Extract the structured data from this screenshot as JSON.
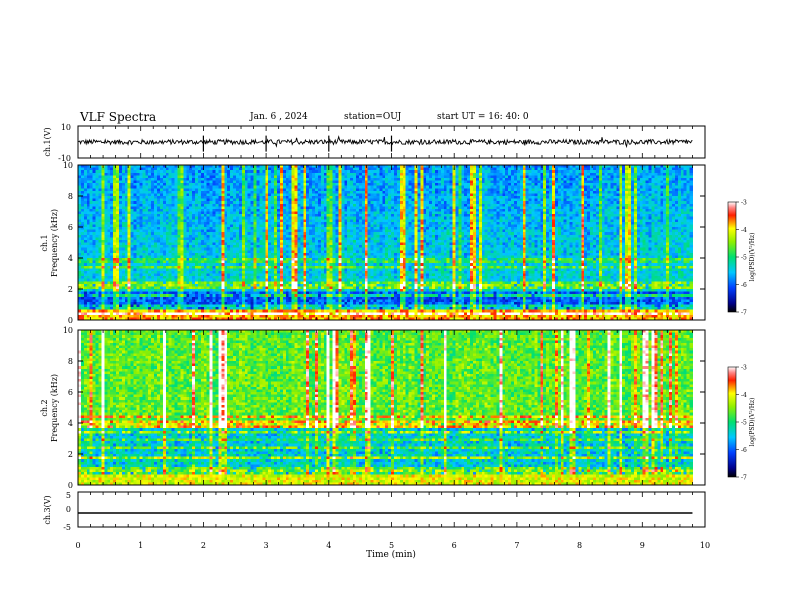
{
  "header": {
    "title": "VLF Spectra",
    "date": "Jan. 6 , 2024",
    "station": "station=OUJ",
    "start": "start UT =  16: 40: 0"
  },
  "chart_data": [
    {
      "type": "line",
      "panel": "ch1-waveform",
      "ylabel": "ch.1(V)",
      "ylim": [
        -10,
        10
      ],
      "yticks": [
        "10",
        "-10"
      ],
      "xlim": [
        0,
        10
      ],
      "baseline": 0,
      "approx_amplitude": 1.5
    },
    {
      "type": "heatmap",
      "panel": "ch1-spectrogram",
      "ylabel": "ch.1 Frequency (kHz)",
      "ylim": [
        0,
        10
      ],
      "yticks": [
        "0",
        "2",
        "4",
        "6",
        "8",
        "10"
      ],
      "xlim": [
        0,
        9.8
      ],
      "colorbar": {
        "label": "log(PSD)(V²/Hz)",
        "range": [
          -7,
          -3
        ],
        "ticks": [
          "-3",
          "-4",
          "-5",
          "-6",
          "-7"
        ]
      }
    },
    {
      "type": "heatmap",
      "panel": "ch2-spectrogram",
      "ylabel": "ch.2 Frequency (kHz)",
      "ylim": [
        0,
        10
      ],
      "yticks": [
        "0",
        "2",
        "4",
        "6",
        "8",
        "10"
      ],
      "xlim": [
        0,
        9.8
      ],
      "colorbar": {
        "label": "log(PSD)(V²/Hz)",
        "range": [
          -7,
          -3
        ],
        "ticks": [
          "-3",
          "-4",
          "-5",
          "-6",
          "-7"
        ]
      }
    },
    {
      "type": "line",
      "panel": "ch3-waveform",
      "ylabel": "ch.3(V)",
      "ylim": [
        -5,
        5
      ],
      "yticks": [
        "5",
        "0",
        "-5"
      ],
      "xlim": [
        0,
        10
      ],
      "constant_value": -1
    }
  ],
  "xaxis": {
    "label": "Time (min)",
    "ticks": [
      "0",
      "1",
      "2",
      "3",
      "4",
      "5",
      "6",
      "7",
      "8",
      "9",
      "10"
    ]
  }
}
